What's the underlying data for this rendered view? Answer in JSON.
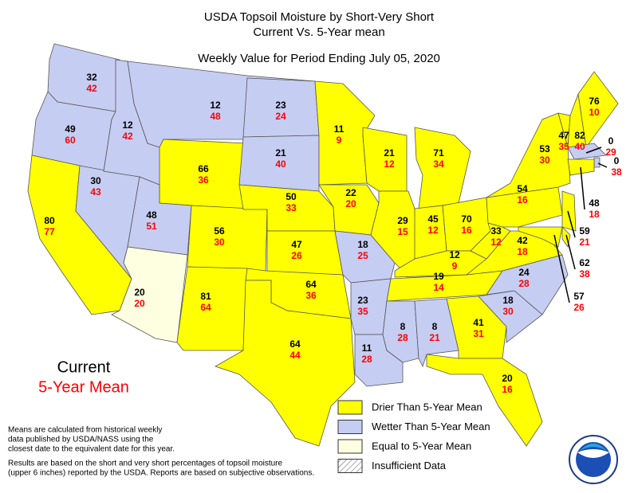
{
  "title": [
    "USDA Topsoil Moisture by Short-Very Short",
    "Current Vs. 5-Year mean",
    "Weekly Value for Period Ending July 05, 2020"
  ],
  "key": {
    "current": "Current",
    "mean": "5-Year Mean",
    "current_color": "#000000",
    "mean_color": "#ff0000"
  },
  "legend": [
    {
      "label": "Drier Than 5-Year Mean",
      "color": "#ffff00"
    },
    {
      "label": "Wetter Than 5-Year Mean",
      "color": "#c6cdf2"
    },
    {
      "label": "Equal to 5-Year Mean",
      "color": "#fefee0"
    },
    {
      "label": "Insufficient Data"
    }
  ],
  "notes": [
    [
      "Means are calculated from historical weekly",
      "data published by USDA/NASS using the",
      "closest date to the equivalent date for this year."
    ],
    [
      "Results are based on the short and very short percentages of topsoil moisture",
      "(upper 6 inches) reported by the USDA. Reports are based on subjective observations."
    ]
  ],
  "states": [
    {
      "current": 32,
      "mean": 42
    },
    {
      "current": 49,
      "mean": 60
    },
    {
      "current": 80,
      "mean": 77
    },
    {
      "current": 30,
      "mean": 43
    },
    {
      "current": 12,
      "mean": 42
    },
    {
      "current": 12,
      "mean": 48
    },
    {
      "current": 66,
      "mean": 36
    },
    {
      "current": 48,
      "mean": 51
    },
    {
      "current": 20,
      "mean": 20
    },
    {
      "current": 56,
      "mean": 30
    },
    {
      "current": 81,
      "mean": 64
    },
    {
      "current": 23,
      "mean": 24
    },
    {
      "current": 21,
      "mean": 40
    },
    {
      "current": 50,
      "mean": 33
    },
    {
      "current": 47,
      "mean": 26
    },
    {
      "current": 64,
      "mean": 36
    },
    {
      "current": 64,
      "mean": 44
    },
    {
      "current": 11,
      "mean": 9
    },
    {
      "current": 22,
      "mean": 20
    },
    {
      "current": 18,
      "mean": 25
    },
    {
      "current": 23,
      "mean": 35
    },
    {
      "current": 11,
      "mean": 28
    },
    {
      "current": 21,
      "mean": 12
    },
    {
      "current": 29,
      "mean": 15
    },
    {
      "current": 71,
      "mean": 34
    },
    {
      "current": 45,
      "mean": 12
    },
    {
      "current": 70,
      "mean": 16
    },
    {
      "current": 12,
      "mean": 9
    },
    {
      "current": 19,
      "mean": 14
    },
    {
      "current": 8,
      "mean": 28
    },
    {
      "current": 8,
      "mean": 21
    },
    {
      "current": 41,
      "mean": 31
    },
    {
      "current": 20,
      "mean": 16
    },
    {
      "current": 18,
      "mean": 30
    },
    {
      "current": 24,
      "mean": 28
    },
    {
      "current": 42,
      "mean": 18
    },
    {
      "current": 33,
      "mean": 12
    },
    {
      "current": 54,
      "mean": 16
    },
    {
      "current": 53,
      "mean": 30
    },
    {
      "current": 47,
      "mean": 35
    },
    {
      "current": 82,
      "mean": 40
    },
    {
      "current": 76,
      "mean": 10
    },
    {
      "current": 0,
      "mean": 29
    },
    {
      "current": 0,
      "mean": 38
    },
    {
      "current": 48,
      "mean": 18
    },
    {
      "current": 59,
      "mean": 21
    },
    {
      "current": 62,
      "mean": 38
    },
    {
      "current": 57,
      "mean": 26
    }
  ]
}
